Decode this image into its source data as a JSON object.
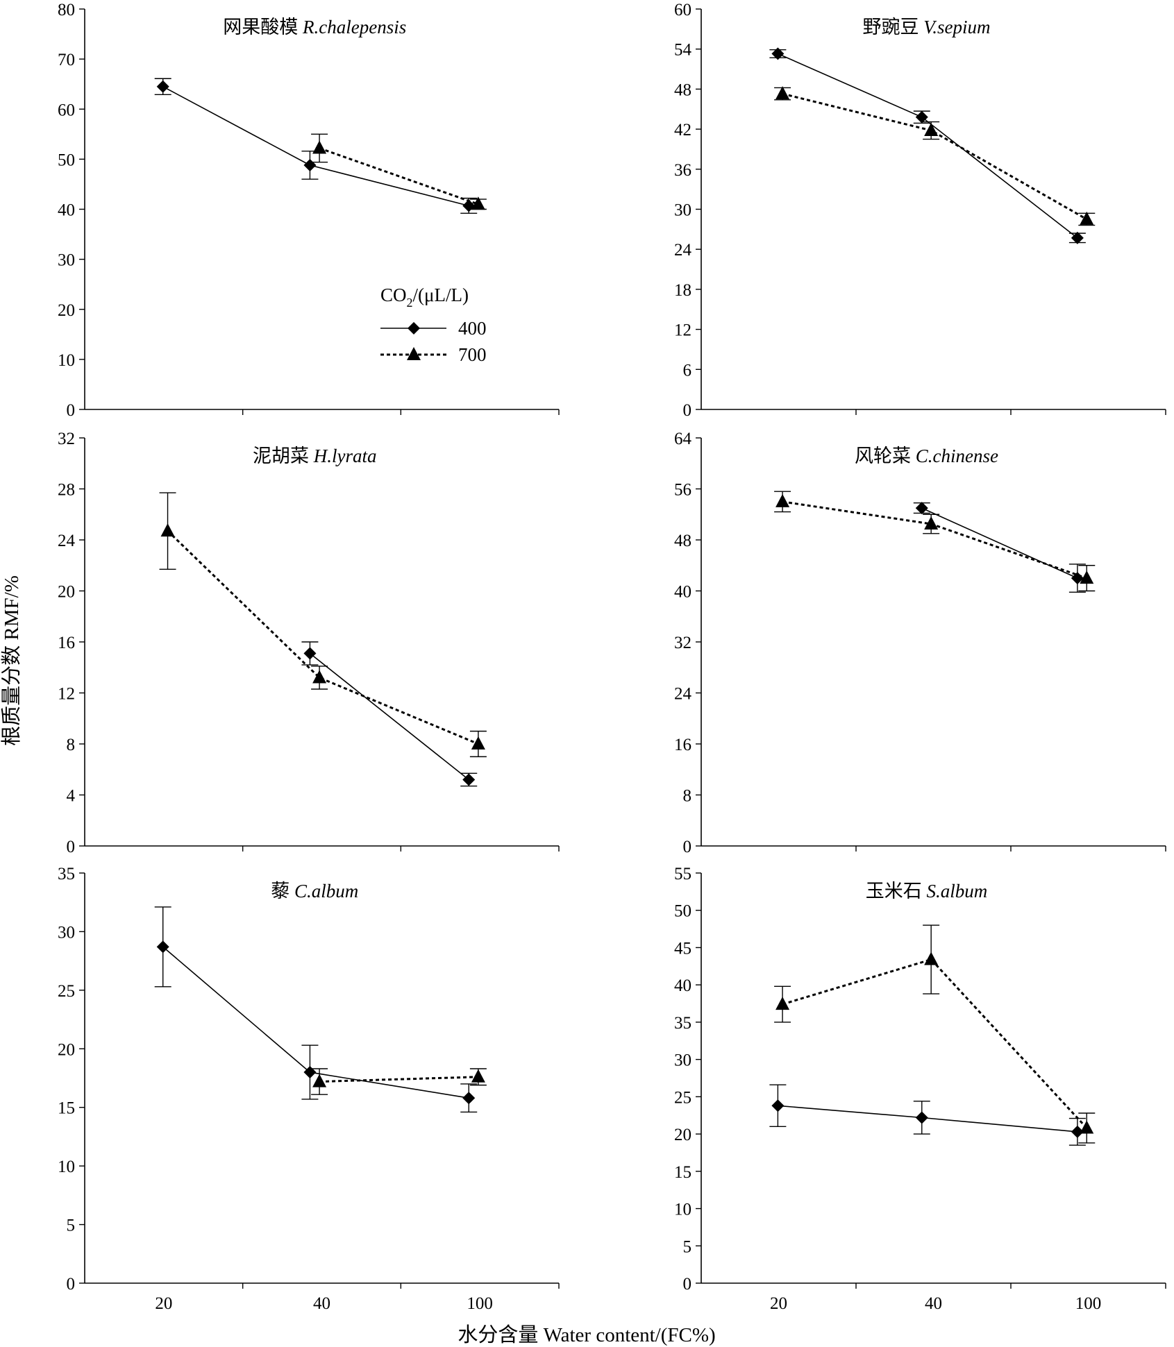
{
  "figure": {
    "xlabel": "水分含量 Water content/(FC%)",
    "ylabel": "根质量分数 RMF/%"
  },
  "chart_data": [
    {
      "type": "line",
      "title": "网果酸模",
      "title_italic": "R.chalepensis",
      "x": [
        "20",
        "40",
        "100"
      ],
      "ylim": [
        0,
        80
      ],
      "yticks": [
        0,
        10,
        20,
        30,
        40,
        50,
        60,
        70,
        80
      ],
      "legend": {
        "title_base": "CO",
        "title_sub": "2",
        "title_rest": "/(μL/L)",
        "position": "center-right"
      },
      "series": [
        {
          "name": "400",
          "marker": "diamond",
          "dash": "solid",
          "values": [
            64.5,
            48.8,
            40.7
          ],
          "errors": [
            1.6,
            2.8,
            1.5
          ]
        },
        {
          "name": "700",
          "marker": "triangle",
          "dash": "dotted",
          "values": [
            null,
            52.2,
            41.0
          ],
          "errors": [
            null,
            2.8,
            1.0
          ]
        }
      ]
    },
    {
      "type": "line",
      "title": "野豌豆",
      "title_italic": "V.sepium",
      "x": [
        "20",
        "40",
        "100"
      ],
      "ylim": [
        0,
        60
      ],
      "yticks": [
        0,
        6,
        12,
        18,
        24,
        30,
        36,
        42,
        48,
        54,
        60
      ],
      "series": [
        {
          "name": "400",
          "marker": "diamond",
          "dash": "solid",
          "values": [
            53.3,
            43.8,
            25.7
          ],
          "errors": [
            0.6,
            0.9,
            0.7
          ]
        },
        {
          "name": "700",
          "marker": "triangle",
          "dash": "dotted",
          "values": [
            47.3,
            41.8,
            28.5
          ],
          "errors": [
            0.9,
            1.3,
            0.9
          ]
        }
      ]
    },
    {
      "type": "line",
      "title": "泥胡菜",
      "title_italic": "H.lyrata",
      "x": [
        "20",
        "40",
        "100"
      ],
      "ylim": [
        0,
        32
      ],
      "yticks": [
        0,
        4,
        8,
        12,
        16,
        20,
        24,
        28,
        32
      ],
      "series": [
        {
          "name": "400",
          "marker": "diamond",
          "dash": "solid",
          "values": [
            null,
            15.1,
            5.2
          ],
          "errors": [
            null,
            0.9,
            0.5
          ]
        },
        {
          "name": "700",
          "marker": "triangle",
          "dash": "dotted",
          "values": [
            24.7,
            13.2,
            8.0
          ],
          "errors": [
            3.0,
            0.9,
            1.0
          ]
        }
      ]
    },
    {
      "type": "line",
      "title": "风轮菜",
      "title_italic": "C.chinense",
      "x": [
        "20",
        "40",
        "100"
      ],
      "ylim": [
        0,
        64
      ],
      "yticks": [
        0,
        8,
        16,
        24,
        32,
        40,
        48,
        56,
        64
      ],
      "series": [
        {
          "name": "400",
          "marker": "diamond",
          "dash": "solid",
          "values": [
            null,
            53.0,
            42.0
          ],
          "errors": [
            null,
            0.8,
            2.2
          ]
        },
        {
          "name": "700",
          "marker": "triangle",
          "dash": "dotted",
          "values": [
            54.0,
            50.5,
            42.0
          ],
          "errors": [
            1.6,
            1.5,
            2.0
          ]
        }
      ]
    },
    {
      "type": "line",
      "title": "藜",
      "title_italic": "C.album",
      "x": [
        "20",
        "40",
        "100"
      ],
      "ylim": [
        0,
        35
      ],
      "yticks": [
        0,
        5,
        10,
        15,
        20,
        25,
        30,
        35
      ],
      "series": [
        {
          "name": "400",
          "marker": "diamond",
          "dash": "solid",
          "values": [
            28.7,
            18.0,
            15.8
          ],
          "errors": [
            3.4,
            2.3,
            1.2
          ]
        },
        {
          "name": "700",
          "marker": "triangle",
          "dash": "dotted",
          "values": [
            null,
            17.2,
            17.6
          ],
          "errors": [
            null,
            1.1,
            0.7
          ]
        }
      ]
    },
    {
      "type": "line",
      "title": "玉米石",
      "title_italic": "S.album",
      "x": [
        "20",
        "40",
        "100"
      ],
      "ylim": [
        0,
        55
      ],
      "yticks": [
        0,
        5,
        10,
        15,
        20,
        25,
        30,
        35,
        40,
        45,
        50,
        55
      ],
      "series": [
        {
          "name": "400",
          "marker": "diamond",
          "dash": "solid",
          "values": [
            23.8,
            22.2,
            20.3
          ],
          "errors": [
            2.8,
            2.2,
            1.8
          ]
        },
        {
          "name": "700",
          "marker": "triangle",
          "dash": "dotted",
          "values": [
            37.4,
            43.4,
            20.8
          ],
          "errors": [
            2.4,
            4.6,
            2.0
          ]
        }
      ]
    }
  ]
}
